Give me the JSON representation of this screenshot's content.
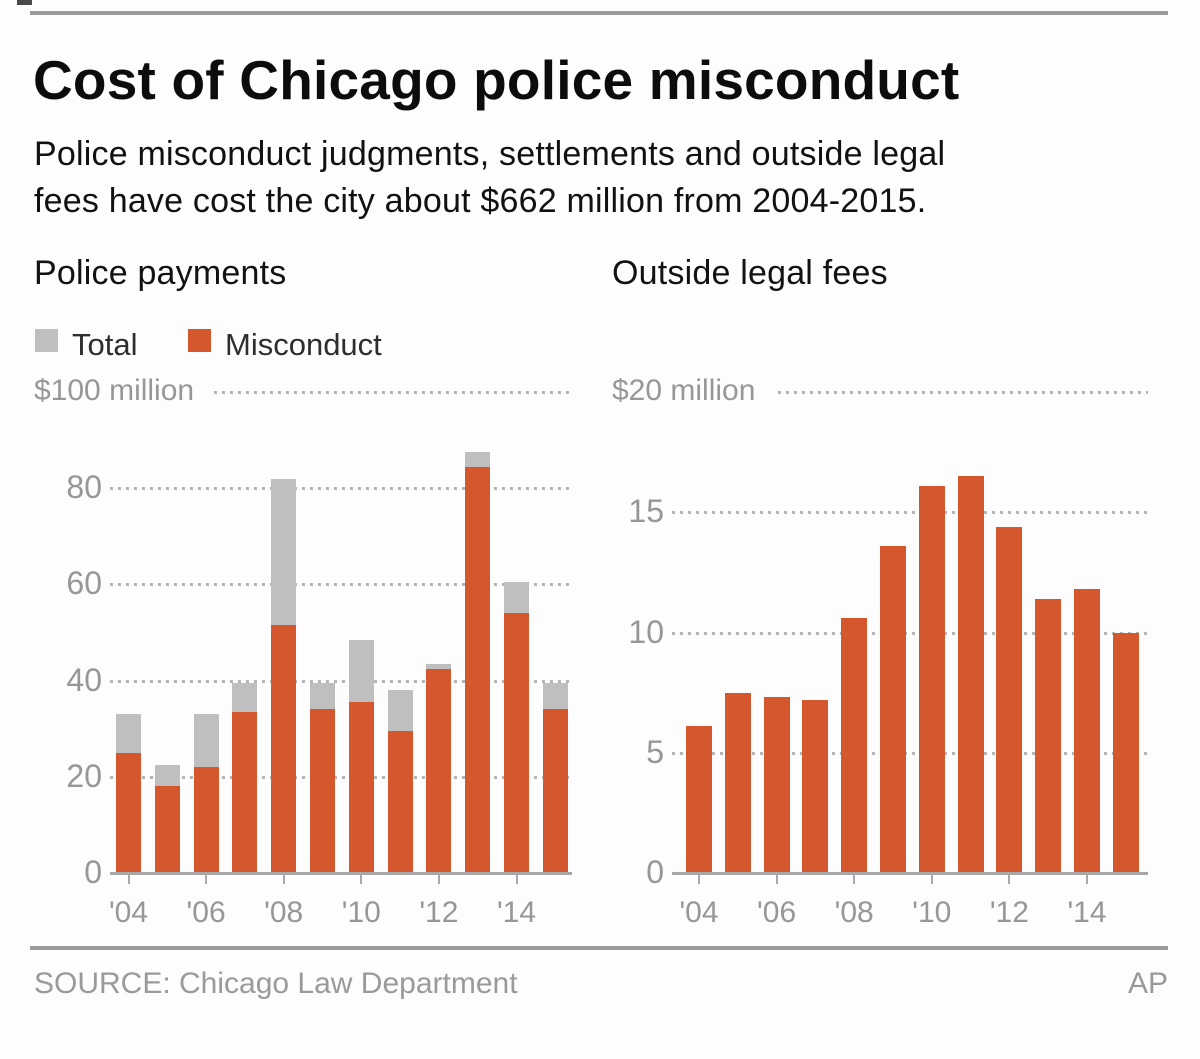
{
  "header": {
    "title": "Cost of Chicago police misconduct",
    "subtitle_line1": "Police misconduct judgments, settlements and outside legal",
    "subtitle_line2": "fees have cost the city about $662 million from 2004-2015."
  },
  "legend": {
    "total_label": "Total",
    "misconduct_label": "Misconduct"
  },
  "footer": {
    "source": "SOURCE: Chicago Law Department",
    "credit": "AP"
  },
  "colors": {
    "misconduct_orange": "#D4572E",
    "total_gray": "#BFBFBF",
    "axis_text_gray": "#979797",
    "grid_gray": "#B5B5B5",
    "rule_gray": "#9B9B9B"
  },
  "chart_data": [
    {
      "type": "bar",
      "title": "Police payments",
      "axis_top_label": "$100 million",
      "unit": "millions of dollars",
      "categories": [
        "2004",
        "2005",
        "2006",
        "2007",
        "2008",
        "2009",
        "2010",
        "2011",
        "2012",
        "2013",
        "2014",
        "2015"
      ],
      "series": [
        {
          "name": "Total",
          "color": "#BFBFBF",
          "values": [
            33,
            22.5,
            33,
            39.5,
            82,
            39.5,
            48.5,
            38,
            43.5,
            87.5,
            60.5,
            39.5
          ]
        },
        {
          "name": "Misconduct",
          "color": "#D4572E",
          "values": [
            25,
            18,
            22,
            33.5,
            51.5,
            34,
            35.5,
            29.5,
            42.5,
            84.5,
            54,
            34
          ]
        }
      ],
      "stacking": "overlay-from-zero",
      "ylim": [
        0,
        100
      ],
      "yticks": [
        0,
        20,
        40,
        60,
        80
      ],
      "xtick_labels": [
        "'04",
        "'06",
        "'08",
        "'10",
        "'12",
        "'14"
      ],
      "grid": "dotted horizontal",
      "legend_position": "above-left"
    },
    {
      "type": "bar",
      "title": "Outside legal fees",
      "axis_top_label": "$20 million",
      "unit": "millions of dollars",
      "categories": [
        "2004",
        "2005",
        "2006",
        "2007",
        "2008",
        "2009",
        "2010",
        "2011",
        "2012",
        "2013",
        "2014",
        "2015"
      ],
      "series": [
        {
          "name": "Outside legal fees",
          "color": "#D4572E",
          "values": [
            6.1,
            7.5,
            7.3,
            7.2,
            10.6,
            13.6,
            16.1,
            16.5,
            14.4,
            11.4,
            11.8,
            10
          ]
        }
      ],
      "ylim": [
        0,
        20
      ],
      "yticks": [
        0,
        5,
        10,
        15
      ],
      "xtick_labels": [
        "'04",
        "'06",
        "'08",
        "'10",
        "'12",
        "'14"
      ],
      "grid": "dotted horizontal",
      "legend_position": "none"
    }
  ]
}
